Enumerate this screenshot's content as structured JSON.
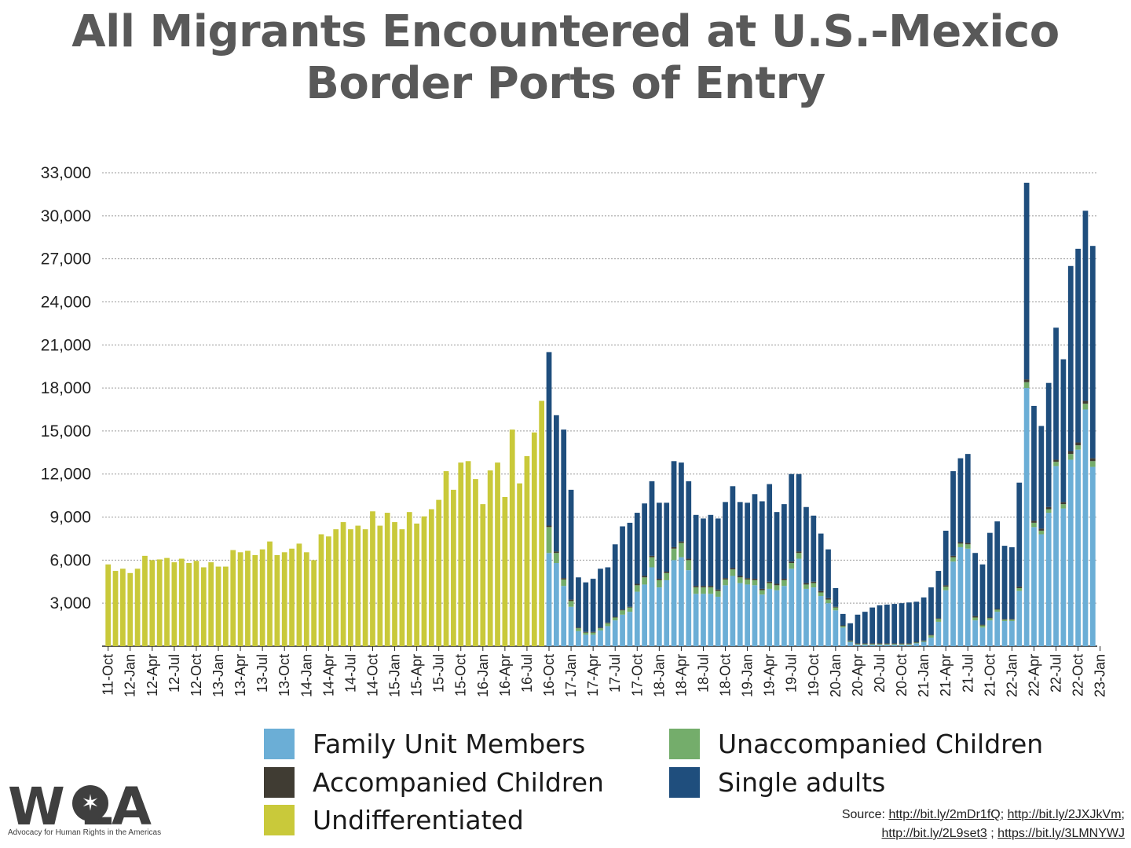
{
  "title_line1": "All Migrants Encountered at U.S.-Mexico",
  "title_line2": "Border Ports of Entry",
  "chart_data": {
    "type": "bar",
    "stacked": true,
    "ylim": [
      0,
      33000
    ],
    "yticks": [
      3000,
      6000,
      9000,
      12000,
      15000,
      18000,
      21000,
      24000,
      27000,
      30000,
      33000
    ],
    "ytick_labels": [
      "3,000",
      "6,000",
      "9,000",
      "12,000",
      "15,000",
      "18,000",
      "21,000",
      "24,000",
      "27,000",
      "30,000",
      "33,000"
    ],
    "grid": true,
    "legend_position": "bottom",
    "xtick_labels": [
      "11-Oct",
      "12-Jan",
      "12-Apr",
      "12-Jul",
      "12-Oct",
      "13-Jan",
      "13-Apr",
      "13-Jul",
      "13-Oct",
      "14-Jan",
      "14-Apr",
      "14-Jul",
      "14-Oct",
      "15-Jan",
      "15-Apr",
      "15-Jul",
      "15-Oct",
      "16-Jan",
      "16-Apr",
      "16-Jul",
      "16-Oct",
      "17-Jan",
      "17-Apr",
      "17-Jul",
      "17-Oct",
      "18-Jan",
      "18-Apr",
      "18-Jul",
      "18-Oct",
      "19-Jan",
      "19-Apr",
      "19-Jul",
      "19-Oct",
      "20-Jan",
      "20-Apr",
      "20-Jul",
      "20-Oct",
      "21-Jan",
      "21-Apr",
      "21-Jul",
      "21-Oct",
      "22-Jan",
      "22-Apr",
      "22-Jul",
      "22-Oct",
      "23-Jan"
    ],
    "series": [
      {
        "name": "Family Unit Members",
        "color": "#6baed6"
      },
      {
        "name": "Unaccompanied Children",
        "color": "#74ad6b"
      },
      {
        "name": "Accompanied Children",
        "color": "#403c33"
      },
      {
        "name": "Undifferentiated",
        "color": "#c9c93a"
      },
      {
        "name": "Single adults",
        "color": "#1f4e7d"
      }
    ],
    "undifferentiated_values": [
      5700,
      5250,
      5400,
      5100,
      5400,
      6300,
      6000,
      6050,
      6150,
      5850,
      6100,
      5800,
      5950,
      5500,
      5850,
      5550,
      5550,
      6700,
      6550,
      6650,
      6350,
      6750,
      7300,
      6350,
      6550,
      6800,
      7150,
      6550,
      6000,
      7800,
      7650,
      8150,
      8650,
      8150,
      8400,
      8150,
      9400,
      8400,
      9300,
      8650,
      8150,
      9350,
      8550,
      9050,
      9550,
      10200,
      12200,
      10900,
      12800,
      12900,
      11650,
      9900,
      12250,
      12800,
      10400,
      15100,
      11350,
      13250,
      14900,
      17100
    ],
    "breakdown_values": {
      "family_unit_members": [
        6500,
        5800,
        4200,
        2750,
        1050,
        800,
        800,
        1100,
        1400,
        1800,
        2200,
        2400,
        3800,
        4300,
        5500,
        4100,
        4600,
        6000,
        6200,
        5300,
        3650,
        3650,
        3650,
        3450,
        4250,
        4900,
        4400,
        4300,
        4250,
        3600,
        4000,
        3900,
        4200,
        5400,
        6100,
        4000,
        4100,
        3500,
        3000,
        2500,
        1300,
        300,
        100,
        100,
        100,
        100,
        100,
        100,
        100,
        100,
        200,
        300,
        600,
        1700,
        3900,
        5900,
        6900,
        6800,
        1800,
        1300,
        1800,
        2400,
        1750,
        1750,
        3850,
        18000,
        8300,
        7800,
        9300,
        12550,
        9600,
        13000,
        13700,
        16500,
        12500
      ],
      "unaccompanied_children": [
        1800,
        700,
        450,
        400,
        200,
        150,
        150,
        150,
        200,
        200,
        300,
        300,
        450,
        500,
        700,
        500,
        500,
        800,
        1000,
        700,
        450,
        450,
        450,
        400,
        400,
        450,
        400,
        350,
        350,
        300,
        400,
        350,
        400,
        400,
        400,
        300,
        300,
        250,
        250,
        200,
        100,
        50,
        50,
        50,
        50,
        50,
        50,
        50,
        50,
        50,
        50,
        50,
        150,
        200,
        250,
        300,
        250,
        300,
        200,
        150,
        150,
        150,
        100,
        100,
        200,
        400,
        300,
        250,
        250,
        300,
        300,
        400,
        300,
        400,
        400
      ],
      "accompanied_children": [
        100,
        100,
        100,
        100,
        50,
        50,
        50,
        50,
        50,
        50,
        50,
        50,
        100,
        100,
        100,
        100,
        100,
        100,
        100,
        100,
        100,
        100,
        100,
        100,
        100,
        100,
        100,
        100,
        100,
        100,
        100,
        100,
        100,
        100,
        100,
        100,
        100,
        100,
        100,
        50,
        50,
        50,
        50,
        50,
        50,
        50,
        50,
        50,
        50,
        50,
        50,
        50,
        50,
        50,
        100,
        100,
        100,
        100,
        100,
        50,
        50,
        50,
        50,
        50,
        100,
        200,
        150,
        150,
        150,
        150,
        150,
        200,
        200,
        200,
        200
      ],
      "single_adults": [
        12100,
        9500,
        10350,
        7650,
        3500,
        3450,
        3700,
        4100,
        3850,
        5050,
        5800,
        5850,
        4950,
        5050,
        5200,
        5300,
        4800,
        6000,
        5500,
        5400,
        4950,
        4700,
        4950,
        4950,
        5300,
        5700,
        5150,
        5250,
        5900,
        6100,
        6800,
        5000,
        5200,
        6100,
        5400,
        5300,
        4600,
        4000,
        3400,
        1300,
        800,
        1200,
        2000,
        2200,
        2500,
        2650,
        2700,
        2750,
        2800,
        2850,
        2800,
        3000,
        3300,
        3300,
        3800,
        5900,
        5850,
        6200,
        4400,
        4200,
        5900,
        6100,
        5100,
        5000,
        7250,
        13700,
        8000,
        7150,
        8650,
        9200,
        9950,
        12900,
        13500,
        13250,
        14800
      ]
    }
  },
  "legend_items": [
    {
      "label": "Family Unit Members",
      "color": "#6baed6"
    },
    {
      "label": "Unaccompanied Children",
      "color": "#74ad6b"
    },
    {
      "label": "Accompanied Children",
      "color": "#403c33"
    },
    {
      "label": "Single adults",
      "color": "#1f4e7d"
    },
    {
      "label": "Undifferentiated",
      "color": "#c9c93a"
    }
  ],
  "source": {
    "prefix": "Source: ",
    "links": [
      "http://bit.ly/2mDr1fQ",
      "http://bit.ly/2JXJkVm",
      "http://bit.ly/2L9set3",
      "https://bit.ly/3LMNYWJ"
    ],
    "sep1": "; ",
    "sep2": ";",
    "sep3": " ; "
  },
  "logo": {
    "text": "W    LA",
    "tagline": "Advocacy for Human Rights in the Americas"
  }
}
